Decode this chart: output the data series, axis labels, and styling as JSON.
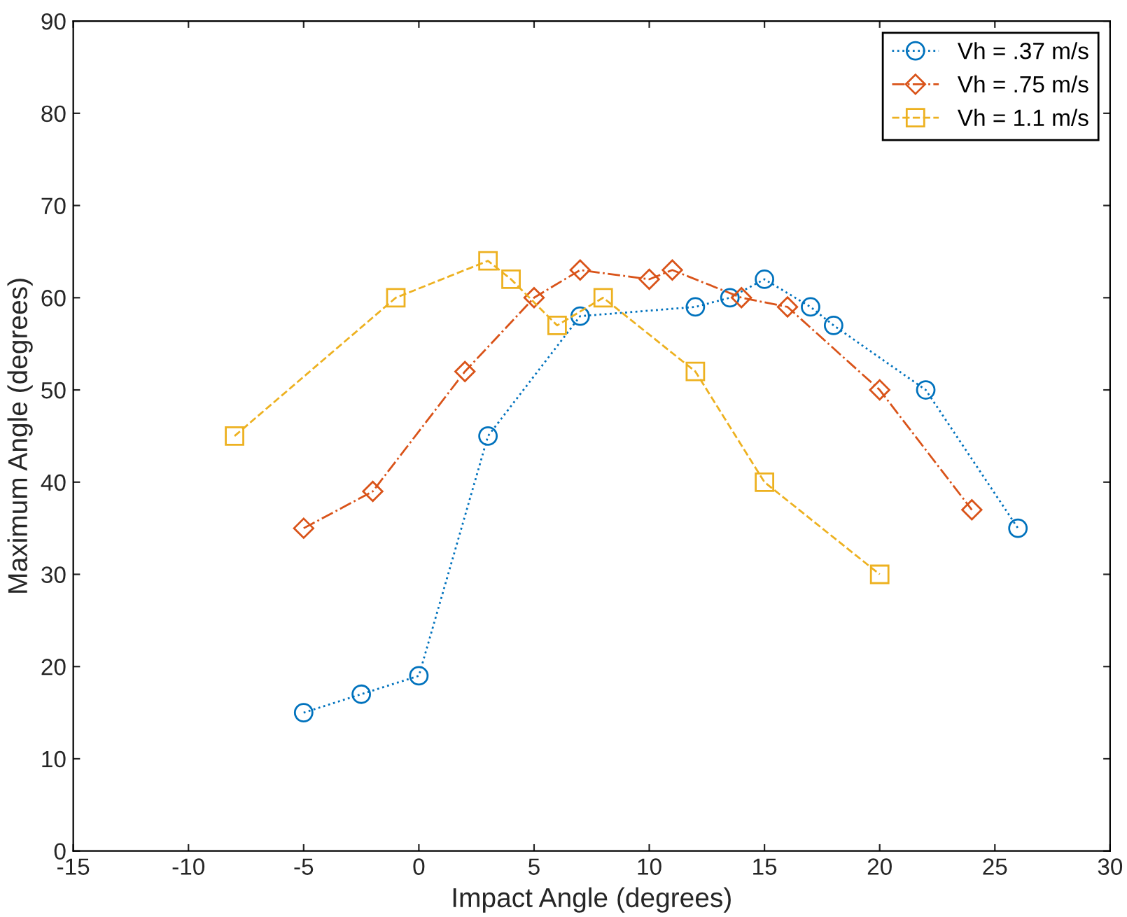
{
  "chart_data": {
    "type": "line",
    "xlabel": "Impact Angle (degrees)",
    "ylabel": "Maximum Angle (degrees)",
    "xlim": [
      -15,
      30
    ],
    "xticks": [
      -15,
      -10,
      -5,
      0,
      5,
      10,
      15,
      20,
      25,
      30
    ],
    "ylim": [
      0,
      90
    ],
    "yticks": [
      0,
      10,
      20,
      30,
      40,
      50,
      60,
      70,
      80,
      90
    ],
    "grid": false,
    "legend": "top right",
    "series": [
      {
        "name": "Vh = .37 m/s",
        "color": "#0072bd",
        "marker": "circle",
        "line_style": "dotted",
        "x": [
          -5,
          -2.5,
          0,
          3,
          7,
          12,
          13.5,
          15,
          17,
          18,
          22,
          26
        ],
        "values": [
          15,
          17,
          19,
          45,
          58,
          59,
          60,
          62,
          59,
          57,
          50,
          35
        ]
      },
      {
        "name": "Vh = .75 m/s",
        "color": "#d95319",
        "marker": "diamond",
        "line_style": "dashdot",
        "x": [
          -5,
          -2,
          2,
          5,
          7,
          10,
          11,
          14,
          16,
          20,
          24
        ],
        "values": [
          35,
          39,
          52,
          60,
          63,
          62,
          63,
          60,
          59,
          50,
          37
        ]
      },
      {
        "name": "Vh = 1.1 m/s",
        "color": "#edb120",
        "marker": "square",
        "line_style": "dashed",
        "x": [
          -8,
          -1,
          3,
          4,
          6,
          8,
          12,
          15,
          20
        ],
        "values": [
          45,
          60,
          64,
          62,
          57,
          60,
          52,
          40,
          30
        ]
      }
    ]
  }
}
